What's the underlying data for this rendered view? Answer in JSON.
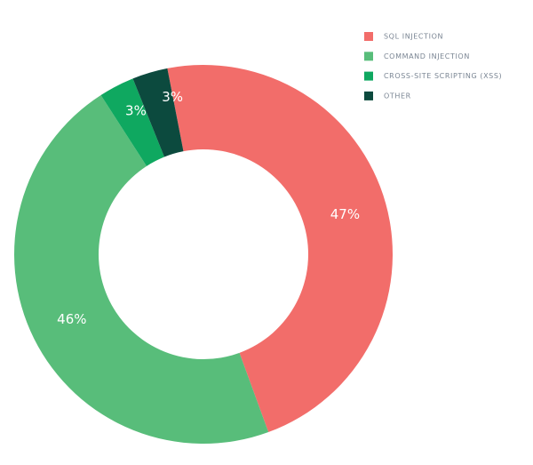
{
  "chart_data": {
    "type": "donut",
    "categories": [
      "SQL INJECTION",
      "COMMAND INJECTION",
      "CROSS-SITE SCRIPTING (XSS)",
      "OTHER"
    ],
    "values": [
      47,
      46,
      3,
      3
    ],
    "value_labels": [
      "47%",
      "46%",
      "3%",
      "3%"
    ],
    "colors": [
      "#f26d6a",
      "#58bd7a",
      "#0fa860",
      "#0c4a3e"
    ]
  }
}
